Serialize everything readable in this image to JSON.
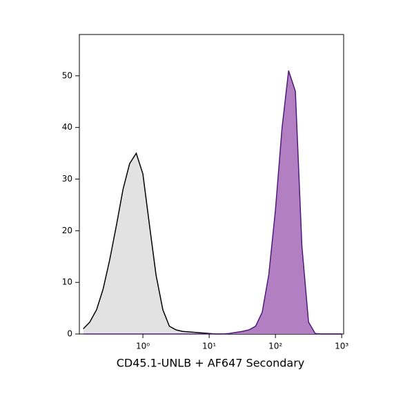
{
  "chart_data": {
    "type": "histogram-area",
    "x_label": "CD45.1-UNLB + AF647 Secondary",
    "xscale": "log",
    "x": [
      0.126,
      0.158,
      0.2,
      0.251,
      0.316,
      0.398,
      0.501,
      0.631,
      0.794,
      1,
      1.26,
      1.58,
      2,
      2.51,
      3.16,
      3.98,
      5.01,
      6.31,
      7.94,
      10,
      12.6,
      15.8,
      20,
      25.1,
      31.6,
      39.8,
      50.1,
      63.1,
      79.4,
      100,
      126,
      158,
      200,
      251,
      316,
      398,
      501,
      631,
      794,
      1000
    ],
    "series": [
      {
        "color": "#000000",
        "fill": "#e2e2e2",
        "values": [
          1,
          2.3,
          4.7,
          8.7,
          14.4,
          21,
          28,
          33,
          35,
          31,
          21,
          11.4,
          4.7,
          1.5,
          0.8,
          0.5,
          0.4,
          0.3,
          0.2,
          0.1,
          0,
          0,
          0,
          0,
          0,
          0,
          0,
          0,
          0,
          0,
          0,
          0,
          0,
          0,
          0,
          0,
          0,
          0,
          0,
          0
        ]
      },
      {
        "color": "#4f1a7a",
        "fill": "#b27fc2",
        "values": [
          0,
          0,
          0,
          0,
          0,
          0,
          0,
          0,
          0,
          0,
          0,
          0,
          0,
          0,
          0,
          0,
          0,
          0,
          0,
          0,
          0,
          0,
          0.1,
          0.3,
          0.5,
          0.8,
          1.5,
          4.2,
          11.5,
          24,
          40,
          51,
          47,
          17,
          2.3,
          0.1,
          0,
          0,
          0,
          0
        ]
      }
    ],
    "xlim": [
      0.11,
      1070
    ],
    "ylim": [
      0,
      58
    ],
    "xticks": [
      {
        "value": 1,
        "label": "10⁰"
      },
      {
        "value": 10,
        "label": "10¹"
      },
      {
        "value": 100,
        "label": "10²"
      },
      {
        "value": 1000,
        "label": "10³"
      }
    ],
    "yticks": [
      0,
      10,
      20,
      30,
      40,
      50
    ]
  }
}
